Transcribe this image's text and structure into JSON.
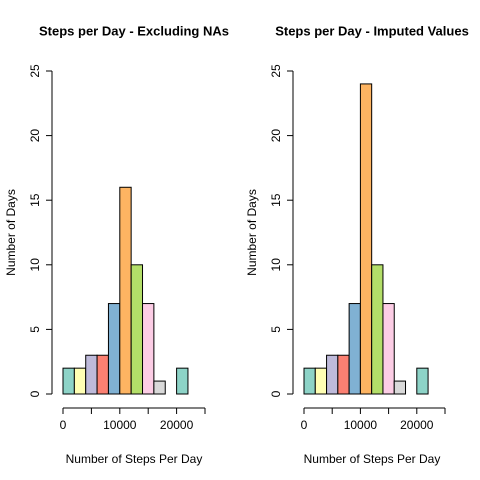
{
  "chart_data": [
    {
      "type": "histogram",
      "title": "Steps per Day - Excluding NAs",
      "xlabel": "Number of Steps Per Day",
      "ylabel": "Number of Days",
      "bins": [
        0,
        2000,
        4000,
        6000,
        8000,
        10000,
        12000,
        14000,
        16000,
        18000,
        20000,
        22000
      ],
      "values": [
        2,
        2,
        3,
        3,
        7,
        16,
        10,
        7,
        1,
        0,
        2
      ],
      "colors": [
        "#8DD3C7",
        "#FFFFB3",
        "#BEBADA",
        "#FB8072",
        "#80B1D3",
        "#FDB462",
        "#B3DE69",
        "#FCCDE5",
        "#D9D9D9",
        "#BC80BD",
        "#8DD3C7"
      ],
      "xlim": [
        0,
        25000
      ],
      "xticks": [
        0,
        10000,
        20000
      ],
      "xminor_ticks": [
        5000,
        15000,
        25000
      ],
      "ylim": [
        0,
        25
      ],
      "yticks": [
        0,
        5,
        10,
        15,
        20,
        25
      ]
    },
    {
      "type": "histogram",
      "title": "Steps per Day - Imputed Values",
      "xlabel": "Number of Steps Per Day",
      "ylabel": "Number of Days",
      "bins": [
        0,
        2000,
        4000,
        6000,
        8000,
        10000,
        12000,
        14000,
        16000,
        18000,
        20000,
        22000
      ],
      "values": [
        2,
        2,
        3,
        3,
        7,
        24,
        10,
        7,
        1,
        0,
        2
      ],
      "colors": [
        "#8DD3C7",
        "#FFFFB3",
        "#BEBADA",
        "#FB8072",
        "#80B1D3",
        "#FDB462",
        "#B3DE69",
        "#FCCDE5",
        "#D9D9D9",
        "#BC80BD",
        "#8DD3C7"
      ],
      "xlim": [
        0,
        25000
      ],
      "xticks": [
        0,
        10000,
        20000
      ],
      "xminor_ticks": [
        5000,
        15000,
        25000
      ],
      "ylim": [
        0,
        25
      ],
      "yticks": [
        0,
        5,
        10,
        15,
        20,
        25
      ]
    }
  ]
}
